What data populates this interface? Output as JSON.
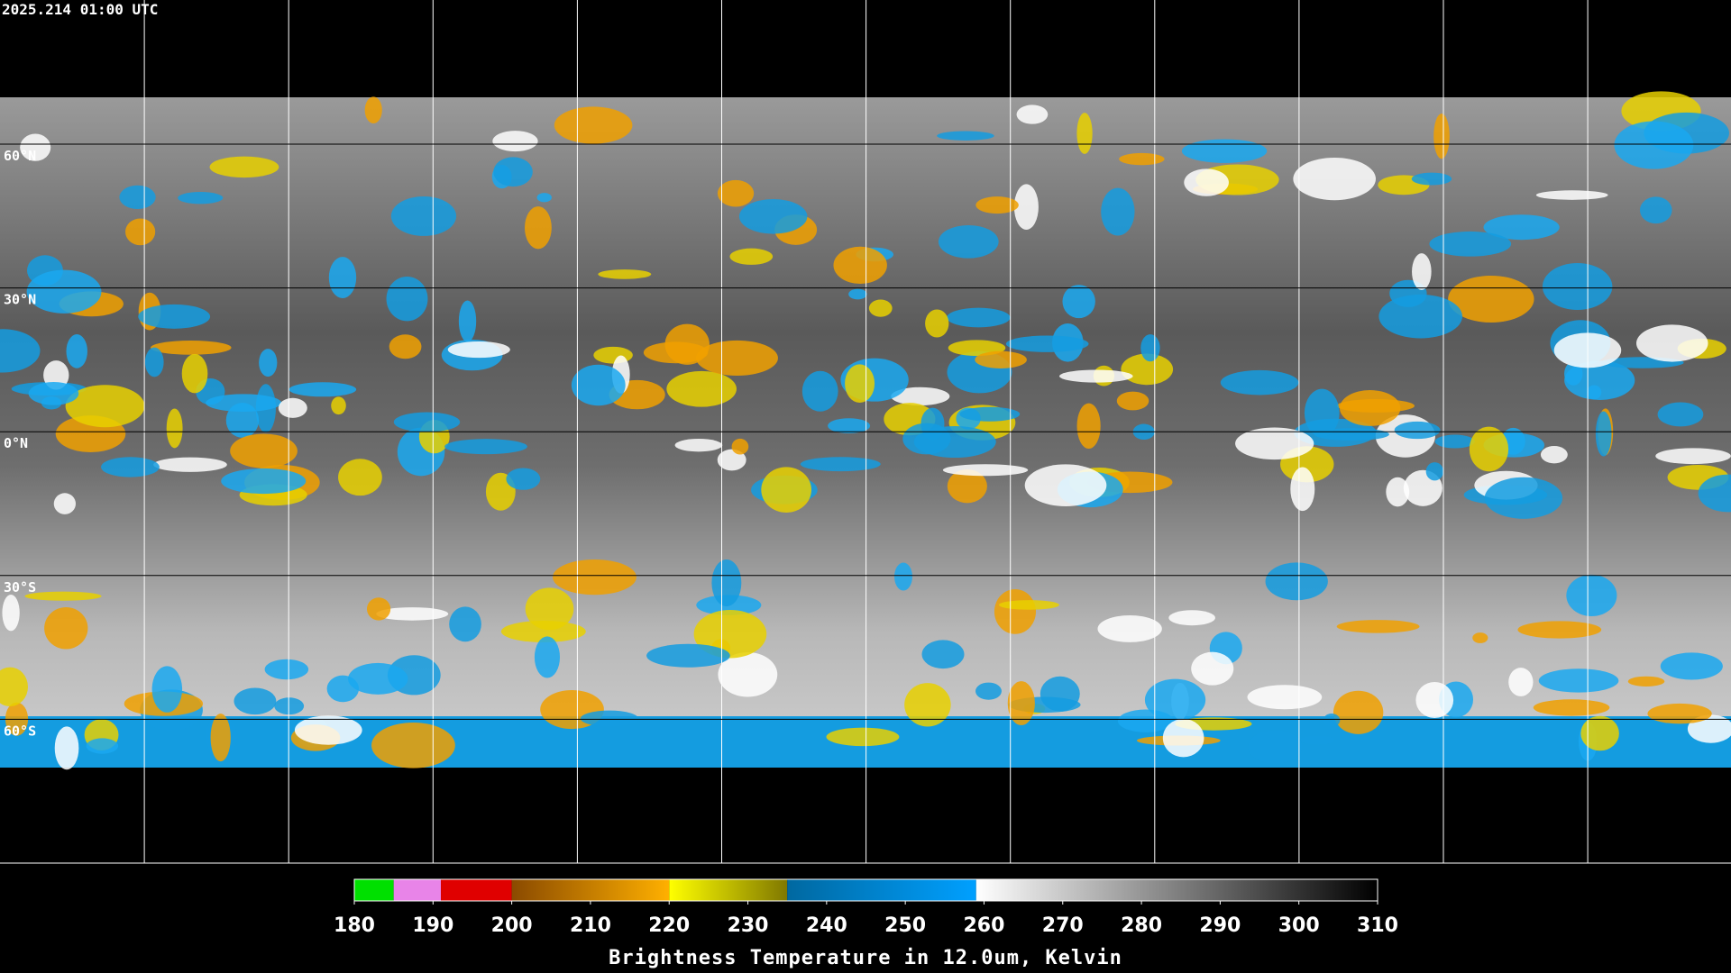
{
  "header": {
    "timestamp": "2025.214 01:00 UTC"
  },
  "map": {
    "latitude_labels": [
      "60°N",
      "30°N",
      "0°N",
      "30°S",
      "60°S"
    ]
  },
  "colorbar": {
    "range": [
      180,
      310
    ],
    "ticks": [
      180,
      190,
      200,
      210,
      220,
      230,
      240,
      250,
      260,
      270,
      280,
      290,
      300,
      310
    ],
    "label": "Brightness Temperature in 12.0um, Kelvin",
    "segments": [
      {
        "from": 180,
        "to": 185,
        "colors": [
          "#00e000",
          "#00e000"
        ]
      },
      {
        "from": 185,
        "to": 191,
        "colors": [
          "#e884e8",
          "#e884e8"
        ]
      },
      {
        "from": 191,
        "to": 200,
        "colors": [
          "#e00000",
          "#e00000"
        ]
      },
      {
        "from": 200,
        "to": 220,
        "colors": [
          "#8a4a00",
          "#ffb000"
        ]
      },
      {
        "from": 220,
        "to": 235,
        "colors": [
          "#ffff00",
          "#807800"
        ]
      },
      {
        "from": 235,
        "to": 259,
        "colors": [
          "#0068a0",
          "#00a0ff"
        ]
      },
      {
        "from": 259,
        "to": 310,
        "colors": [
          "#ffffff",
          "#000000"
        ]
      }
    ]
  }
}
